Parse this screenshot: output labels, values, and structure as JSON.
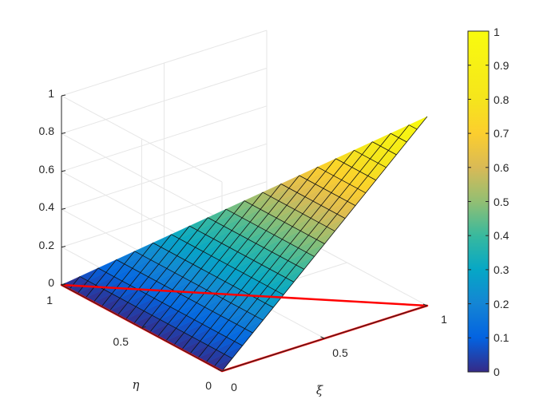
{
  "chart_data": {
    "type": "surface",
    "surface": {
      "description_formula": "z = xi over triangle with vertices (0,0),(1,0),(0,1)",
      "vertices": [
        [
          0,
          0,
          0
        ],
        [
          1,
          0,
          1
        ],
        [
          0,
          1,
          0
        ]
      ],
      "mesh_divisions": 20
    },
    "outline": {
      "color": "#ff0000",
      "vertices": [
        [
          0,
          0,
          0
        ],
        [
          1,
          0,
          0
        ],
        [
          0,
          1,
          0
        ]
      ]
    },
    "axes": {
      "x": {
        "label": "ξ",
        "ticks": [
          "0",
          "0.5",
          "1"
        ],
        "range": [
          0,
          1
        ]
      },
      "y": {
        "label": "η",
        "ticks": [
          "0",
          "0.5",
          "1"
        ],
        "range": [
          0,
          1
        ]
      },
      "z": {
        "label": "",
        "ticks": [
          "0",
          "0.2",
          "0.4",
          "0.6",
          "0.8",
          "1"
        ],
        "range": [
          0,
          1
        ]
      }
    },
    "grid": true,
    "colormap": "parula",
    "colorbar": {
      "ticks": [
        "0",
        "0.1",
        "0.2",
        "0.3",
        "0.4",
        "0.5",
        "0.6",
        "0.7",
        "0.8",
        "0.9",
        "1"
      ],
      "range": [
        0,
        1
      ]
    }
  }
}
